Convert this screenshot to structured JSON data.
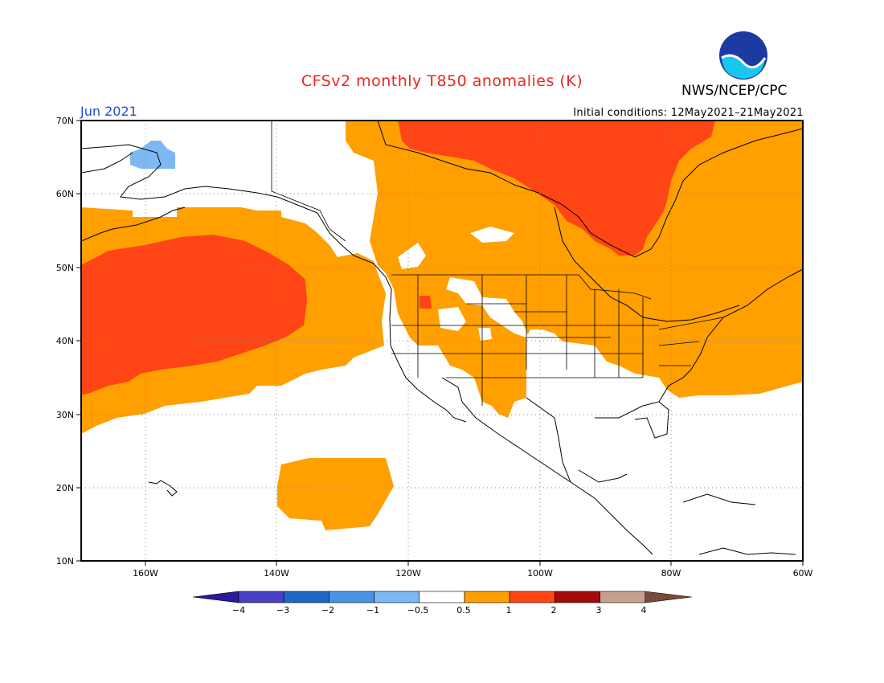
{
  "title": "CFSv2 monthly T850 anomalies (K)",
  "agency": "NWS/NCEP/CPC",
  "logo_text": "NOAA",
  "period": "Jun 2021",
  "initial_conditions": "Initial conditions: 12May2021–21May2021",
  "lat_labels": [
    "70N",
    "60N",
    "50N",
    "40N",
    "30N",
    "20N",
    "10N"
  ],
  "lon_labels": [
    "160W",
    "140W",
    "120W",
    "100W",
    "80W",
    "60W"
  ],
  "colorbar": {
    "labels": [
      "−4",
      "−3",
      "−2",
      "−1",
      "−0.5",
      "0.5",
      "1",
      "2",
      "3",
      "4"
    ],
    "colors": [
      "#2a1a9e",
      "#4a3fc8",
      "#2166c8",
      "#4a92e6",
      "#7cb8f2",
      "#ffffff",
      "#ff9f00",
      "#ff4516",
      "#a50a0a",
      "#c8a090",
      "#7a4a3a"
    ]
  },
  "regions": [
    {
      "name": "warm-1-2",
      "color": "#ff9f00"
    },
    {
      "name": "warm-2-3",
      "color": "#ff4516"
    },
    {
      "name": "cool-0.5-1",
      "color": "#7cb8f2"
    }
  ]
}
